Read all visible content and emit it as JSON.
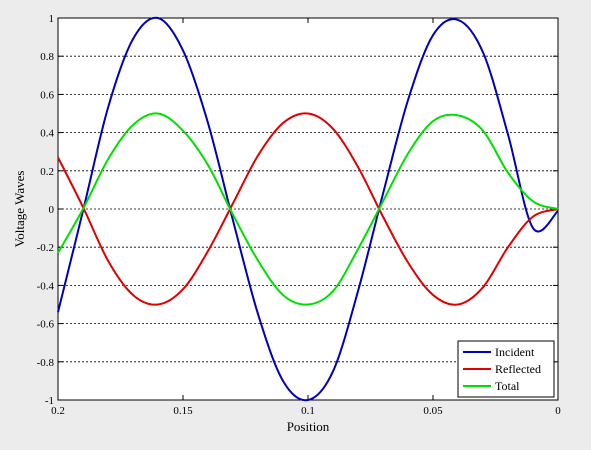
{
  "chart_data": {
    "type": "line",
    "title": "",
    "xlabel": "Position",
    "ylabel": "Voltage Waves",
    "xlim": [
      0.2,
      0
    ],
    "ylim": [
      -1,
      1
    ],
    "x_reversed": true,
    "grid": "horizontal dashed",
    "legend_position": "bottom-right",
    "x_ticks": [
      0.2,
      0.15,
      0.1,
      0.05,
      0
    ],
    "x_tick_labels": [
      "0.2",
      "0.15",
      "0.1",
      "0.05",
      "0"
    ],
    "y_ticks": [
      -1,
      -0.8,
      -0.6,
      -0.4,
      -0.2,
      0,
      0.2,
      0.4,
      0.6,
      0.8,
      1
    ],
    "y_tick_labels": [
      "-1",
      "-0.8",
      "-0.6",
      "-0.4",
      "-0.2",
      "0",
      "0.2",
      "0.4",
      "0.6",
      "0.8",
      "1"
    ],
    "x": [
      0.2,
      0.19,
      0.18,
      0.17,
      0.16,
      0.15,
      0.14,
      0.13,
      0.12,
      0.11,
      0.1,
      0.09,
      0.08,
      0.07,
      0.06,
      0.05,
      0.04,
      0.03,
      0.02,
      0.01,
      0
    ],
    "series": [
      {
        "name": "Incident",
        "color": "#0000bb",
        "values": [
          -0.54,
          -0.01,
          0.53,
          0.89,
          1.0,
          0.83,
          0.45,
          -0.06,
          -0.55,
          -0.9,
          -1.0,
          -0.85,
          -0.43,
          0.08,
          0.57,
          0.91,
          0.99,
          0.82,
          0.39,
          -0.1,
          -0.01
        ]
      },
      {
        "name": "Reflected",
        "color": "#e00000",
        "values": [
          0.27,
          0.01,
          -0.27,
          -0.45,
          -0.5,
          -0.42,
          -0.22,
          0.03,
          0.28,
          0.45,
          0.5,
          0.42,
          0.22,
          -0.04,
          -0.28,
          -0.45,
          -0.5,
          -0.41,
          -0.2,
          -0.04,
          0.0
        ]
      },
      {
        "name": "Total",
        "color": "#00e000",
        "values": [
          -0.23,
          0.0,
          0.26,
          0.44,
          0.5,
          0.41,
          0.23,
          -0.03,
          -0.27,
          -0.45,
          -0.5,
          -0.43,
          -0.21,
          0.04,
          0.29,
          0.46,
          0.49,
          0.41,
          0.19,
          0.04,
          0.0
        ]
      }
    ]
  }
}
